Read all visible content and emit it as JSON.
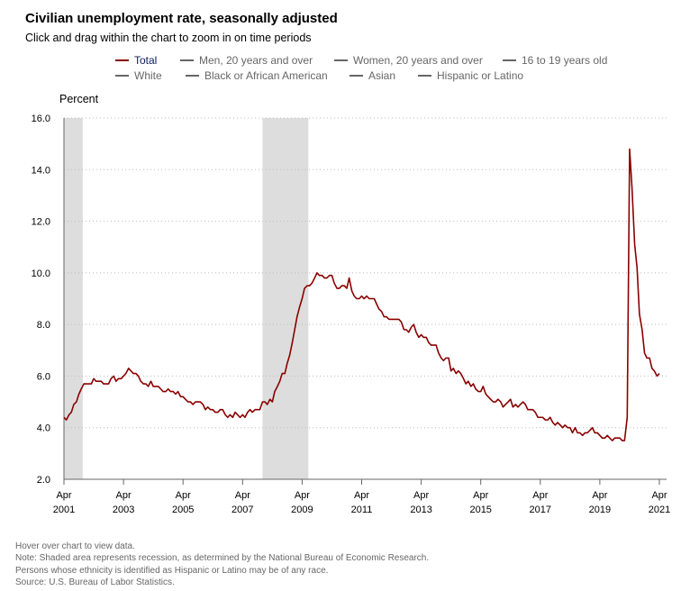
{
  "header": {
    "title": "Civilian unemployment rate, seasonally adjusted",
    "subtitle": "Click and drag within the chart to zoom in on time periods"
  },
  "legend": [
    {
      "label": "Total",
      "active": true
    },
    {
      "label": "Men, 20 years and over",
      "active": false
    },
    {
      "label": "Women, 20 years and over",
      "active": false
    },
    {
      "label": "16 to 19 years old",
      "active": false
    },
    {
      "label": "White",
      "active": false
    },
    {
      "label": "Black or African American",
      "active": false
    },
    {
      "label": "Asian",
      "active": false
    },
    {
      "label": "Hispanic or Latino",
      "active": false
    }
  ],
  "colors": {
    "total_line": "#8b0000",
    "recession": "#dddddd",
    "inactive": "#666666"
  },
  "notes": [
    "Hover over chart to view data.",
    "Note: Shaded area represents recession, as determined by the National Bureau of Economic Research.",
    "Persons whose ethnicity is identified as Hispanic or Latino may be of any race.",
    "Source: U.S. Bureau of Labor Statistics."
  ],
  "chart_data": {
    "type": "line",
    "title": "Civilian unemployment rate, seasonally adjusted",
    "ylabel": "Percent",
    "xlabel": "",
    "ylim": [
      2.0,
      16.0
    ],
    "y_ticks": [
      "2.0",
      "4.0",
      "6.0",
      "8.0",
      "10.0",
      "12.0",
      "14.0",
      "16.0"
    ],
    "x_ticks": [
      {
        "month": "Apr",
        "year": "2001",
        "t": 2001.25
      },
      {
        "month": "Apr",
        "year": "2003",
        "t": 2003.25
      },
      {
        "month": "Apr",
        "year": "2005",
        "t": 2005.25
      },
      {
        "month": "Apr",
        "year": "2007",
        "t": 2007.25
      },
      {
        "month": "Apr",
        "year": "2009",
        "t": 2009.25
      },
      {
        "month": "Apr",
        "year": "2011",
        "t": 2011.25
      },
      {
        "month": "Apr",
        "year": "2013",
        "t": 2013.25
      },
      {
        "month": "Apr",
        "year": "2015",
        "t": 2015.25
      },
      {
        "month": "Apr",
        "year": "2017",
        "t": 2017.25
      },
      {
        "month": "Apr",
        "year": "2019",
        "t": 2019.25
      },
      {
        "month": "Apr",
        "year": "2021",
        "t": 2021.25
      }
    ],
    "xlim": [
      2001.25,
      2021.25
    ],
    "grid": "horizontal dotted",
    "legend_position": "top",
    "recessions": [
      {
        "start": "Apr 2001",
        "end": "Nov 2001",
        "t_start": 2001.25,
        "t_end": 2001.88
      },
      {
        "start": "Dec 2007",
        "end": "Jun 2009",
        "t_start": 2007.92,
        "t_end": 2009.46
      }
    ],
    "series": [
      {
        "name": "Total",
        "points": [
          [
            2001.25,
            4.4
          ],
          [
            2001.33,
            4.3
          ],
          [
            2001.42,
            4.5
          ],
          [
            2001.5,
            4.6
          ],
          [
            2001.58,
            4.9
          ],
          [
            2001.67,
            5.0
          ],
          [
            2001.75,
            5.3
          ],
          [
            2001.83,
            5.5
          ],
          [
            2001.92,
            5.7
          ],
          [
            2002.0,
            5.7
          ],
          [
            2002.08,
            5.7
          ],
          [
            2002.17,
            5.7
          ],
          [
            2002.25,
            5.9
          ],
          [
            2002.33,
            5.8
          ],
          [
            2002.42,
            5.8
          ],
          [
            2002.5,
            5.8
          ],
          [
            2002.58,
            5.7
          ],
          [
            2002.67,
            5.7
          ],
          [
            2002.75,
            5.7
          ],
          [
            2002.83,
            5.9
          ],
          [
            2002.92,
            6.0
          ],
          [
            2003.0,
            5.8
          ],
          [
            2003.08,
            5.9
          ],
          [
            2003.17,
            5.9
          ],
          [
            2003.25,
            6.0
          ],
          [
            2003.33,
            6.1
          ],
          [
            2003.42,
            6.3
          ],
          [
            2003.5,
            6.2
          ],
          [
            2003.58,
            6.1
          ],
          [
            2003.67,
            6.1
          ],
          [
            2003.75,
            6.0
          ],
          [
            2003.83,
            5.8
          ],
          [
            2003.92,
            5.7
          ],
          [
            2004.0,
            5.7
          ],
          [
            2004.08,
            5.6
          ],
          [
            2004.17,
            5.8
          ],
          [
            2004.25,
            5.6
          ],
          [
            2004.33,
            5.6
          ],
          [
            2004.42,
            5.6
          ],
          [
            2004.5,
            5.5
          ],
          [
            2004.58,
            5.4
          ],
          [
            2004.67,
            5.4
          ],
          [
            2004.75,
            5.5
          ],
          [
            2004.83,
            5.4
          ],
          [
            2004.92,
            5.4
          ],
          [
            2005.0,
            5.3
          ],
          [
            2005.08,
            5.4
          ],
          [
            2005.17,
            5.2
          ],
          [
            2005.25,
            5.2
          ],
          [
            2005.33,
            5.1
          ],
          [
            2005.42,
            5.0
          ],
          [
            2005.5,
            5.0
          ],
          [
            2005.58,
            4.9
          ],
          [
            2005.67,
            5.0
          ],
          [
            2005.75,
            5.0
          ],
          [
            2005.83,
            5.0
          ],
          [
            2005.92,
            4.9
          ],
          [
            2006.0,
            4.7
          ],
          [
            2006.08,
            4.8
          ],
          [
            2006.17,
            4.7
          ],
          [
            2006.25,
            4.7
          ],
          [
            2006.33,
            4.6
          ],
          [
            2006.42,
            4.6
          ],
          [
            2006.5,
            4.7
          ],
          [
            2006.58,
            4.7
          ],
          [
            2006.67,
            4.5
          ],
          [
            2006.75,
            4.4
          ],
          [
            2006.83,
            4.5
          ],
          [
            2006.92,
            4.4
          ],
          [
            2007.0,
            4.6
          ],
          [
            2007.08,
            4.5
          ],
          [
            2007.17,
            4.4
          ],
          [
            2007.25,
            4.5
          ],
          [
            2007.33,
            4.4
          ],
          [
            2007.42,
            4.6
          ],
          [
            2007.5,
            4.7
          ],
          [
            2007.58,
            4.6
          ],
          [
            2007.67,
            4.7
          ],
          [
            2007.75,
            4.7
          ],
          [
            2007.83,
            4.7
          ],
          [
            2007.92,
            5.0
          ],
          [
            2008.0,
            5.0
          ],
          [
            2008.08,
            4.9
          ],
          [
            2008.17,
            5.1
          ],
          [
            2008.25,
            5.0
          ],
          [
            2008.33,
            5.4
          ],
          [
            2008.42,
            5.6
          ],
          [
            2008.5,
            5.8
          ],
          [
            2008.58,
            6.1
          ],
          [
            2008.67,
            6.1
          ],
          [
            2008.75,
            6.5
          ],
          [
            2008.83,
            6.8
          ],
          [
            2008.92,
            7.3
          ],
          [
            2009.0,
            7.8
          ],
          [
            2009.08,
            8.3
          ],
          [
            2009.17,
            8.7
          ],
          [
            2009.25,
            9.0
          ],
          [
            2009.33,
            9.4
          ],
          [
            2009.42,
            9.5
          ],
          [
            2009.5,
            9.5
          ],
          [
            2009.58,
            9.6
          ],
          [
            2009.67,
            9.8
          ],
          [
            2009.75,
            10.0
          ],
          [
            2009.83,
            9.9
          ],
          [
            2009.92,
            9.9
          ],
          [
            2010.0,
            9.8
          ],
          [
            2010.08,
            9.8
          ],
          [
            2010.17,
            9.9
          ],
          [
            2010.25,
            9.9
          ],
          [
            2010.33,
            9.6
          ],
          [
            2010.42,
            9.4
          ],
          [
            2010.5,
            9.4
          ],
          [
            2010.58,
            9.5
          ],
          [
            2010.67,
            9.5
          ],
          [
            2010.75,
            9.4
          ],
          [
            2010.83,
            9.8
          ],
          [
            2010.92,
            9.3
          ],
          [
            2011.0,
            9.1
          ],
          [
            2011.08,
            9.0
          ],
          [
            2011.17,
            9.0
          ],
          [
            2011.25,
            9.1
          ],
          [
            2011.33,
            9.0
          ],
          [
            2011.42,
            9.1
          ],
          [
            2011.5,
            9.0
          ],
          [
            2011.58,
            9.0
          ],
          [
            2011.67,
            9.0
          ],
          [
            2011.75,
            8.8
          ],
          [
            2011.83,
            8.6
          ],
          [
            2011.92,
            8.5
          ],
          [
            2012.0,
            8.3
          ],
          [
            2012.08,
            8.3
          ],
          [
            2012.17,
            8.2
          ],
          [
            2012.25,
            8.2
          ],
          [
            2012.33,
            8.2
          ],
          [
            2012.42,
            8.2
          ],
          [
            2012.5,
            8.2
          ],
          [
            2012.58,
            8.1
          ],
          [
            2012.67,
            7.8
          ],
          [
            2012.75,
            7.8
          ],
          [
            2012.83,
            7.7
          ],
          [
            2012.92,
            7.9
          ],
          [
            2013.0,
            8.0
          ],
          [
            2013.08,
            7.7
          ],
          [
            2013.17,
            7.5
          ],
          [
            2013.25,
            7.6
          ],
          [
            2013.33,
            7.5
          ],
          [
            2013.42,
            7.5
          ],
          [
            2013.5,
            7.3
          ],
          [
            2013.58,
            7.2
          ],
          [
            2013.67,
            7.2
          ],
          [
            2013.75,
            7.2
          ],
          [
            2013.83,
            6.9
          ],
          [
            2013.92,
            6.7
          ],
          [
            2014.0,
            6.6
          ],
          [
            2014.08,
            6.7
          ],
          [
            2014.17,
            6.7
          ],
          [
            2014.25,
            6.2
          ],
          [
            2014.33,
            6.3
          ],
          [
            2014.42,
            6.1
          ],
          [
            2014.5,
            6.2
          ],
          [
            2014.58,
            6.1
          ],
          [
            2014.67,
            5.9
          ],
          [
            2014.75,
            5.7
          ],
          [
            2014.83,
            5.8
          ],
          [
            2014.92,
            5.6
          ],
          [
            2015.0,
            5.7
          ],
          [
            2015.08,
            5.5
          ],
          [
            2015.17,
            5.4
          ],
          [
            2015.25,
            5.4
          ],
          [
            2015.33,
            5.6
          ],
          [
            2015.42,
            5.3
          ],
          [
            2015.5,
            5.2
          ],
          [
            2015.58,
            5.1
          ],
          [
            2015.67,
            5.0
          ],
          [
            2015.75,
            5.0
          ],
          [
            2015.83,
            5.1
          ],
          [
            2015.92,
            5.0
          ],
          [
            2016.0,
            4.8
          ],
          [
            2016.08,
            4.9
          ],
          [
            2016.17,
            5.0
          ],
          [
            2016.25,
            5.1
          ],
          [
            2016.33,
            4.8
          ],
          [
            2016.42,
            4.9
          ],
          [
            2016.5,
            4.8
          ],
          [
            2016.58,
            4.9
          ],
          [
            2016.67,
            5.0
          ],
          [
            2016.75,
            4.9
          ],
          [
            2016.83,
            4.7
          ],
          [
            2016.92,
            4.7
          ],
          [
            2017.0,
            4.7
          ],
          [
            2017.08,
            4.6
          ],
          [
            2017.17,
            4.4
          ],
          [
            2017.25,
            4.4
          ],
          [
            2017.33,
            4.4
          ],
          [
            2017.42,
            4.3
          ],
          [
            2017.5,
            4.3
          ],
          [
            2017.58,
            4.4
          ],
          [
            2017.67,
            4.2
          ],
          [
            2017.75,
            4.1
          ],
          [
            2017.83,
            4.2
          ],
          [
            2017.92,
            4.1
          ],
          [
            2018.0,
            4.0
          ],
          [
            2018.08,
            4.1
          ],
          [
            2018.17,
            4.0
          ],
          [
            2018.25,
            4.0
          ],
          [
            2018.33,
            3.8
          ],
          [
            2018.42,
            4.0
          ],
          [
            2018.5,
            3.8
          ],
          [
            2018.58,
            3.8
          ],
          [
            2018.67,
            3.7
          ],
          [
            2018.75,
            3.8
          ],
          [
            2018.83,
            3.8
          ],
          [
            2018.92,
            3.9
          ],
          [
            2019.0,
            4.0
          ],
          [
            2019.08,
            3.8
          ],
          [
            2019.17,
            3.8
          ],
          [
            2019.25,
            3.7
          ],
          [
            2019.33,
            3.6
          ],
          [
            2019.42,
            3.6
          ],
          [
            2019.5,
            3.7
          ],
          [
            2019.58,
            3.6
          ],
          [
            2019.67,
            3.5
          ],
          [
            2019.75,
            3.6
          ],
          [
            2019.83,
            3.6
          ],
          [
            2019.92,
            3.6
          ],
          [
            2020.0,
            3.5
          ],
          [
            2020.08,
            3.5
          ],
          [
            2020.17,
            4.4
          ],
          [
            2020.25,
            14.8
          ],
          [
            2020.33,
            13.3
          ],
          [
            2020.42,
            11.1
          ],
          [
            2020.5,
            10.2
          ],
          [
            2020.58,
            8.4
          ],
          [
            2020.67,
            7.8
          ],
          [
            2020.75,
            6.9
          ],
          [
            2020.83,
            6.7
          ],
          [
            2020.92,
            6.7
          ],
          [
            2021.0,
            6.3
          ],
          [
            2021.08,
            6.2
          ],
          [
            2021.17,
            6.0
          ],
          [
            2021.25,
            6.1
          ]
        ]
      }
    ]
  }
}
